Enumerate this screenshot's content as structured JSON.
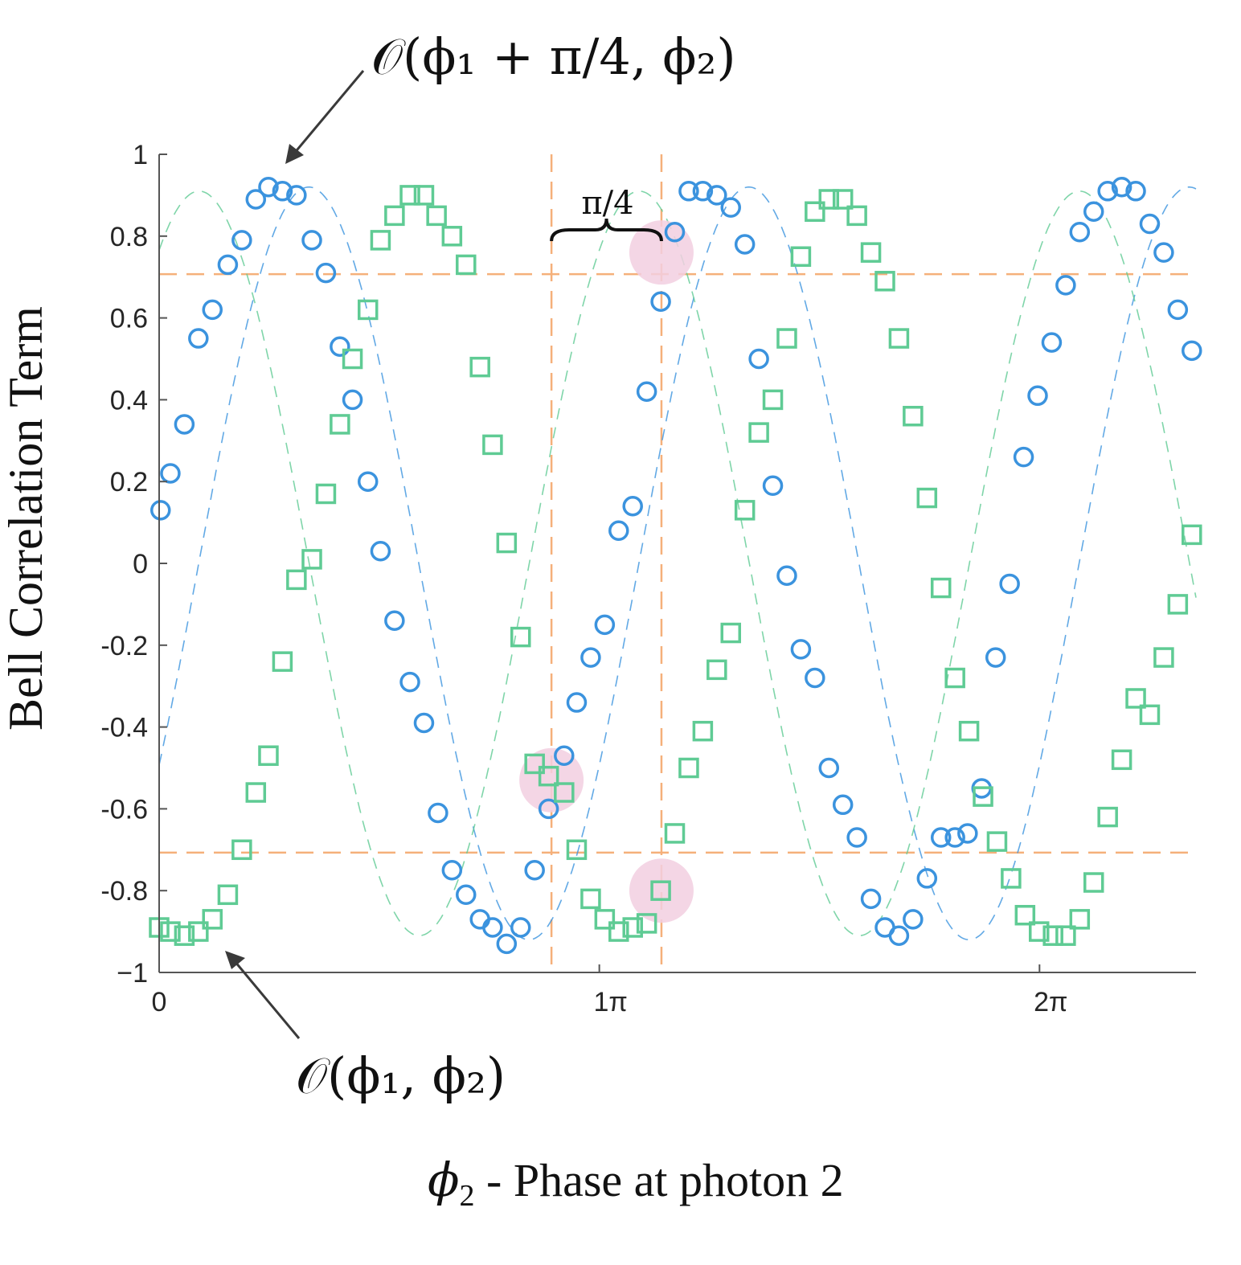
{
  "chart_data": {
    "type": "scatter",
    "xlabel_symbol": "ϕ",
    "xlabel_subscript": "2",
    "xlabel_text": " - Phase at photon 2",
    "ylabel": "Bell Correlation Term",
    "xlim": [
      0,
      7.4
    ],
    "ylim": [
      -1,
      1
    ],
    "x_unit": "radians",
    "x_ticks": [
      {
        "value": 0,
        "label": "0"
      },
      {
        "value": 3.14159,
        "label": "1π"
      },
      {
        "value": 6.28319,
        "label": "2π"
      }
    ],
    "y_ticks": [
      {
        "value": 1,
        "label": "1"
      },
      {
        "value": 0.8,
        "label": "0.8"
      },
      {
        "value": 0.6,
        "label": "0.6"
      },
      {
        "value": 0.4,
        "label": "0.4"
      },
      {
        "value": 0.2,
        "label": "0.2"
      },
      {
        "value": 0,
        "label": "0"
      },
      {
        "value": -0.2,
        "label": "-0.2"
      },
      {
        "value": -0.4,
        "label": "-0.4"
      },
      {
        "value": -0.6,
        "label": "-0.6"
      },
      {
        "value": -0.8,
        "label": "-0.8"
      },
      {
        "value": -1,
        "label": "−1"
      }
    ],
    "grid": false,
    "reference_lines": {
      "horizontal": [
        0.707,
        -0.707
      ],
      "vertical": [
        2.8,
        3.585
      ],
      "color": "#f5b07a"
    },
    "brace_label": "π/4",
    "highlights": [
      {
        "x": 3.585,
        "y": 0.76
      },
      {
        "x": 2.8,
        "y": -0.53
      },
      {
        "x": 3.585,
        "y": -0.8
      }
    ],
    "highlight_color": "#f2cfe0",
    "series": [
      {
        "marker": "circle",
        "color": "#3b93de",
        "fit": {
          "amplitude": 0.92,
          "frequency": 2,
          "phase": 0.565,
          "offset": 0
        },
        "points": [
          [
            0.01,
            0.13
          ],
          [
            0.08,
            0.22
          ],
          [
            0.18,
            0.34
          ],
          [
            0.28,
            0.55
          ],
          [
            0.38,
            0.62
          ],
          [
            0.49,
            0.73
          ],
          [
            0.59,
            0.79
          ],
          [
            0.69,
            0.89
          ],
          [
            0.78,
            0.92
          ],
          [
            0.88,
            0.91
          ],
          [
            0.98,
            0.9
          ],
          [
            1.09,
            0.79
          ],
          [
            1.19,
            0.71
          ],
          [
            1.29,
            0.53
          ],
          [
            1.38,
            0.4
          ],
          [
            1.49,
            0.2
          ],
          [
            1.58,
            0.03
          ],
          [
            1.68,
            -0.14
          ],
          [
            1.79,
            -0.29
          ],
          [
            1.89,
            -0.39
          ],
          [
            1.99,
            -0.61
          ],
          [
            2.09,
            -0.75
          ],
          [
            2.19,
            -0.81
          ],
          [
            2.29,
            -0.87
          ],
          [
            2.38,
            -0.89
          ],
          [
            2.48,
            -0.93
          ],
          [
            2.58,
            -0.89
          ],
          [
            2.68,
            -0.75
          ],
          [
            2.78,
            -0.6
          ],
          [
            2.89,
            -0.47
          ],
          [
            2.98,
            -0.34
          ],
          [
            3.08,
            -0.23
          ],
          [
            3.18,
            -0.15
          ],
          [
            3.28,
            0.08
          ],
          [
            3.38,
            0.14
          ],
          [
            3.48,
            0.42
          ],
          [
            3.58,
            0.64
          ],
          [
            3.68,
            0.81
          ],
          [
            3.78,
            0.91
          ],
          [
            3.88,
            0.91
          ],
          [
            3.98,
            0.9
          ],
          [
            4.08,
            0.87
          ],
          [
            4.18,
            0.78
          ],
          [
            4.28,
            0.5
          ],
          [
            4.38,
            0.19
          ],
          [
            4.48,
            -0.03
          ],
          [
            4.58,
            -0.21
          ],
          [
            4.68,
            -0.28
          ],
          [
            4.78,
            -0.5
          ],
          [
            4.88,
            -0.59
          ],
          [
            4.98,
            -0.67
          ],
          [
            5.08,
            -0.82
          ],
          [
            5.18,
            -0.89
          ],
          [
            5.28,
            -0.91
          ],
          [
            5.38,
            -0.87
          ],
          [
            5.48,
            -0.77
          ],
          [
            5.58,
            -0.67
          ],
          [
            5.68,
            -0.67
          ],
          [
            5.77,
            -0.66
          ],
          [
            5.87,
            -0.55
          ],
          [
            5.97,
            -0.23
          ],
          [
            6.07,
            -0.05
          ],
          [
            6.17,
            0.26
          ],
          [
            6.27,
            0.41
          ],
          [
            6.37,
            0.54
          ],
          [
            6.47,
            0.68
          ],
          [
            6.57,
            0.81
          ],
          [
            6.67,
            0.86
          ],
          [
            6.77,
            0.91
          ],
          [
            6.87,
            0.92
          ],
          [
            6.97,
            0.91
          ],
          [
            7.07,
            0.83
          ],
          [
            7.17,
            0.76
          ],
          [
            7.27,
            0.62
          ],
          [
            7.37,
            0.52
          ]
        ]
      },
      {
        "marker": "square",
        "color": "#5fcb94",
        "fit": {
          "amplitude": 0.91,
          "frequency": 2,
          "phase": -1.0,
          "offset": 0
        },
        "points": [
          [
            0.0,
            -0.89
          ],
          [
            0.08,
            -0.9
          ],
          [
            0.18,
            -0.91
          ],
          [
            0.28,
            -0.9
          ],
          [
            0.38,
            -0.87
          ],
          [
            0.49,
            -0.81
          ],
          [
            0.59,
            -0.7
          ],
          [
            0.69,
            -0.56
          ],
          [
            0.78,
            -0.47
          ],
          [
            0.88,
            -0.24
          ],
          [
            0.98,
            -0.04
          ],
          [
            1.09,
            0.01
          ],
          [
            1.19,
            0.17
          ],
          [
            1.29,
            0.34
          ],
          [
            1.38,
            0.5
          ],
          [
            1.49,
            0.62
          ],
          [
            1.58,
            0.79
          ],
          [
            1.68,
            0.85
          ],
          [
            1.79,
            0.9
          ],
          [
            1.89,
            0.9
          ],
          [
            1.98,
            0.85
          ],
          [
            2.09,
            0.8
          ],
          [
            2.19,
            0.73
          ],
          [
            2.29,
            0.48
          ],
          [
            2.38,
            0.29
          ],
          [
            2.48,
            0.05
          ],
          [
            2.58,
            -0.18
          ],
          [
            2.68,
            -0.49
          ],
          [
            2.78,
            -0.52
          ],
          [
            2.89,
            -0.56
          ],
          [
            2.98,
            -0.7
          ],
          [
            3.08,
            -0.82
          ],
          [
            3.18,
            -0.87
          ],
          [
            3.28,
            -0.9
          ],
          [
            3.38,
            -0.89
          ],
          [
            3.48,
            -0.88
          ],
          [
            3.58,
            -0.8
          ],
          [
            3.68,
            -0.66
          ],
          [
            3.78,
            -0.5
          ],
          [
            3.88,
            -0.41
          ],
          [
            3.98,
            -0.26
          ],
          [
            4.08,
            -0.17
          ],
          [
            4.18,
            0.13
          ],
          [
            4.28,
            0.32
          ],
          [
            4.38,
            0.4
          ],
          [
            4.48,
            0.55
          ],
          [
            4.58,
            0.75
          ],
          [
            4.68,
            0.86
          ],
          [
            4.78,
            0.89
          ],
          [
            4.88,
            0.89
          ],
          [
            4.98,
            0.85
          ],
          [
            5.08,
            0.76
          ],
          [
            5.18,
            0.69
          ],
          [
            5.28,
            0.55
          ],
          [
            5.38,
            0.36
          ],
          [
            5.48,
            0.16
          ],
          [
            5.58,
            -0.06
          ],
          [
            5.68,
            -0.28
          ],
          [
            5.78,
            -0.41
          ],
          [
            5.88,
            -0.57
          ],
          [
            5.98,
            -0.68
          ],
          [
            6.08,
            -0.77
          ],
          [
            6.18,
            -0.86
          ],
          [
            6.28,
            -0.9
          ],
          [
            6.38,
            -0.91
          ],
          [
            6.47,
            -0.91
          ],
          [
            6.57,
            -0.87
          ],
          [
            6.67,
            -0.78
          ],
          [
            6.77,
            -0.62
          ],
          [
            6.87,
            -0.48
          ],
          [
            6.97,
            -0.33
          ],
          [
            7.07,
            -0.37
          ],
          [
            7.17,
            -0.23
          ],
          [
            7.27,
            -0.1
          ],
          [
            7.37,
            0.07
          ]
        ]
      }
    ],
    "annotations": [
      {
        "target": [
          0.93,
          0.99
        ],
        "label_math": "𝒪(ϕ₁ + π/4, ϕ₂)"
      },
      {
        "target": [
          0.47,
          -0.94
        ],
        "label_math": "𝒪(ϕ₁, ϕ₂)"
      }
    ]
  }
}
